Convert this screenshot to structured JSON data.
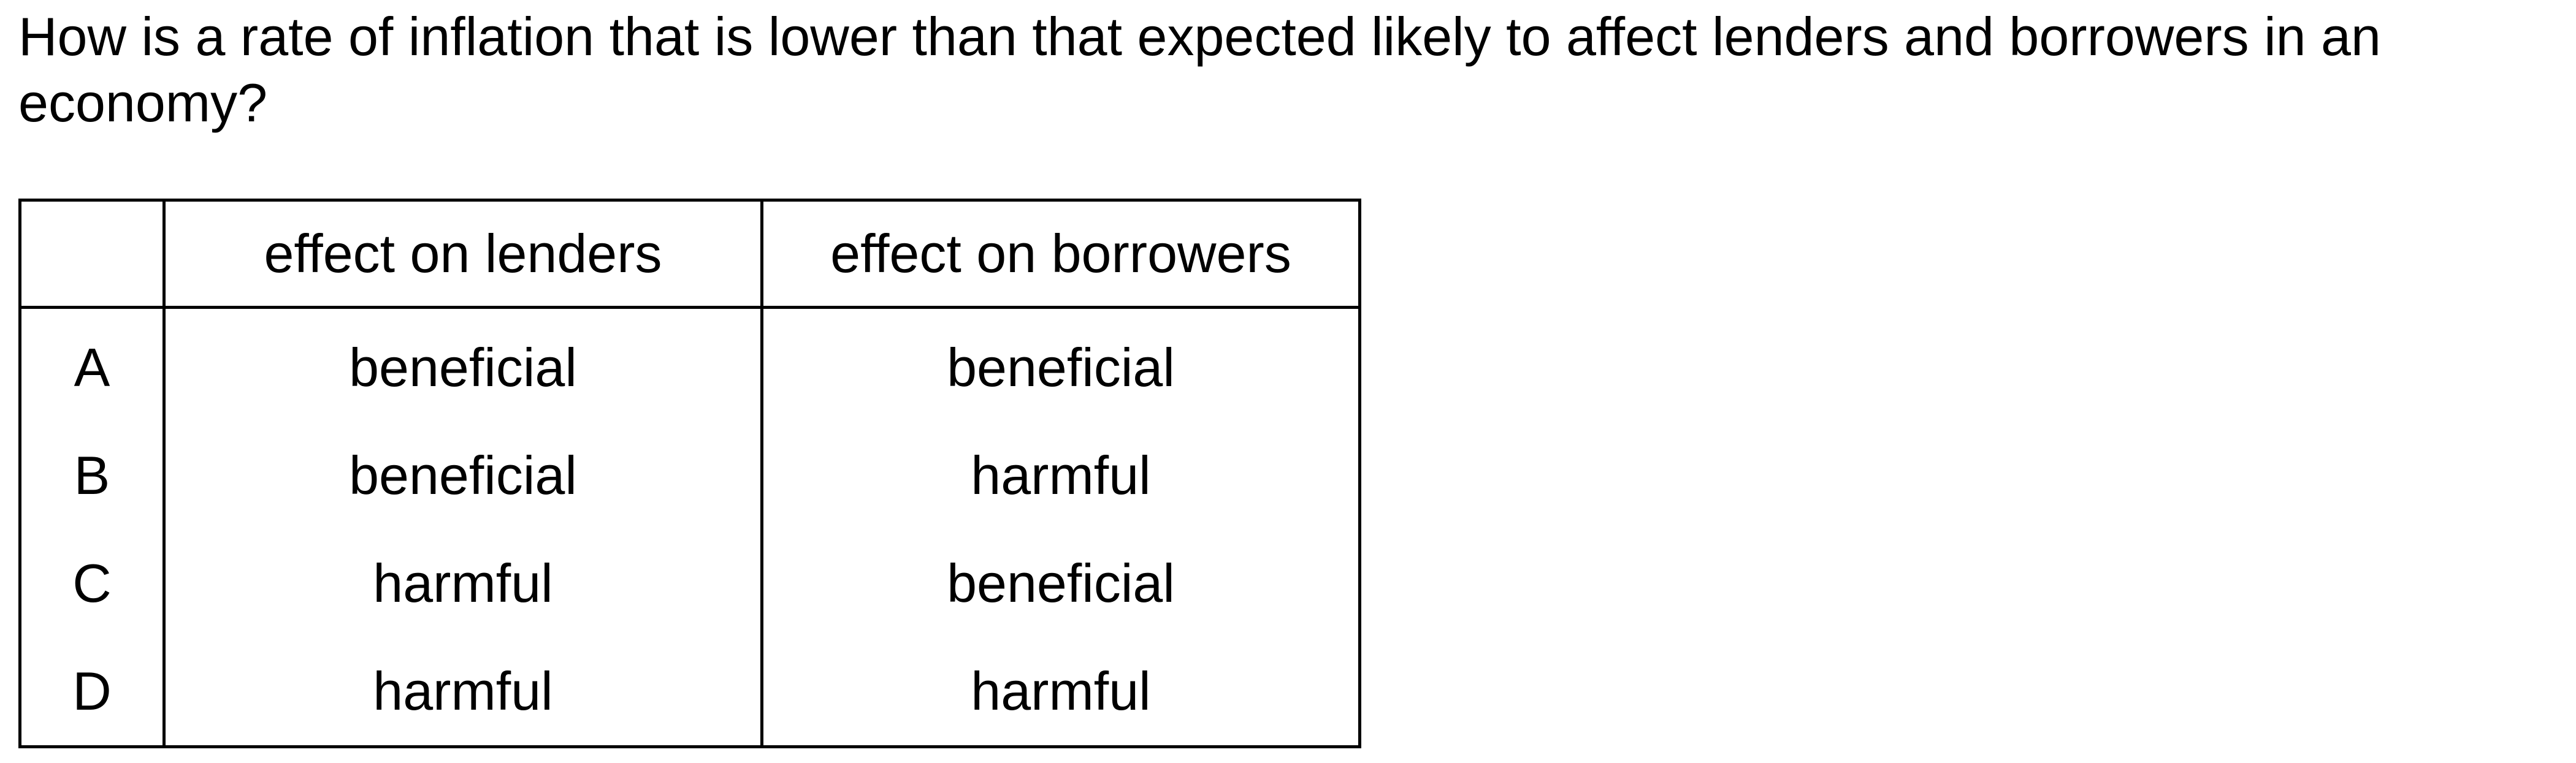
{
  "question": {
    "text": "How is a rate of inflation that is lower than that expected likely to affect lenders and borrowers in an economy?"
  },
  "table": {
    "headers": {
      "key": "",
      "lenders": "effect on lenders",
      "borrowers": "effect on borrowers"
    },
    "rows": [
      {
        "key": "A",
        "lenders": "beneficial",
        "borrowers": "beneficial"
      },
      {
        "key": "B",
        "lenders": "beneficial",
        "borrowers": "harmful"
      },
      {
        "key": "C",
        "lenders": "harmful",
        "borrowers": "beneficial"
      },
      {
        "key": "D",
        "lenders": "harmful",
        "borrowers": "harmful"
      }
    ]
  }
}
